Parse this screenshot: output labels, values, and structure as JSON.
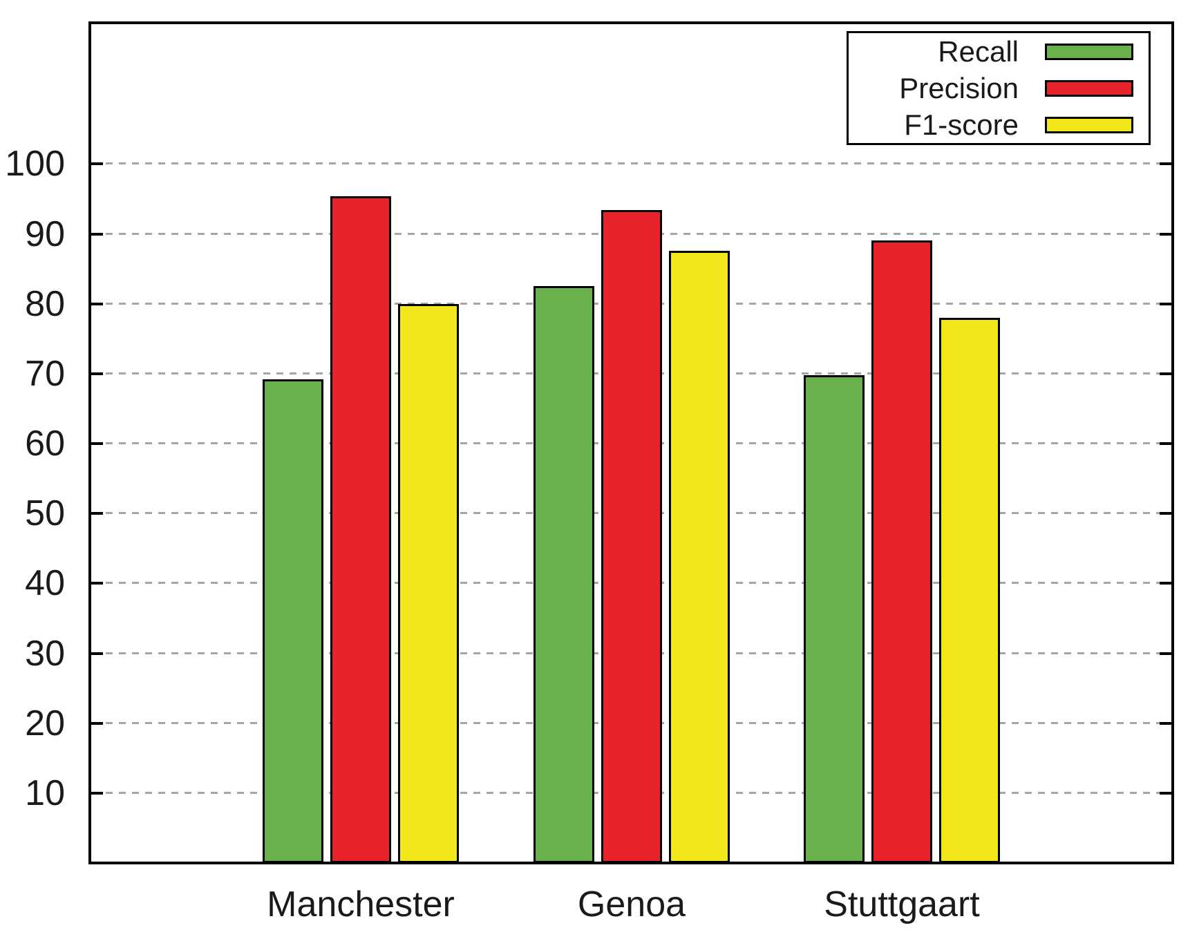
{
  "chart_data": {
    "type": "bar",
    "title": "",
    "categories": [
      "Manchester",
      "Genoa",
      "Stuttgaart"
    ],
    "series": [
      {
        "name": "Recall",
        "color": "#6ab04c",
        "values": [
          69.2,
          82.5,
          69.8
        ]
      },
      {
        "name": "Precision",
        "color": "#e8222b",
        "values": [
          95.4,
          93.4,
          89.1
        ]
      },
      {
        "name": "F1-score",
        "color": "#f2e71b",
        "values": [
          80.0,
          87.6,
          78.0
        ]
      }
    ],
    "yticks": [
      10,
      20,
      30,
      40,
      50,
      60,
      70,
      80,
      90,
      100
    ],
    "ylim": [
      0,
      120
    ],
    "xlabel": "",
    "ylabel": "",
    "grid": "horizontal-dashed",
    "legend_position": "top-right",
    "colors": {
      "axis": "#000000",
      "grid": "#a6a6a6",
      "background": "#ffffff",
      "text": "#1a1a1a"
    }
  }
}
